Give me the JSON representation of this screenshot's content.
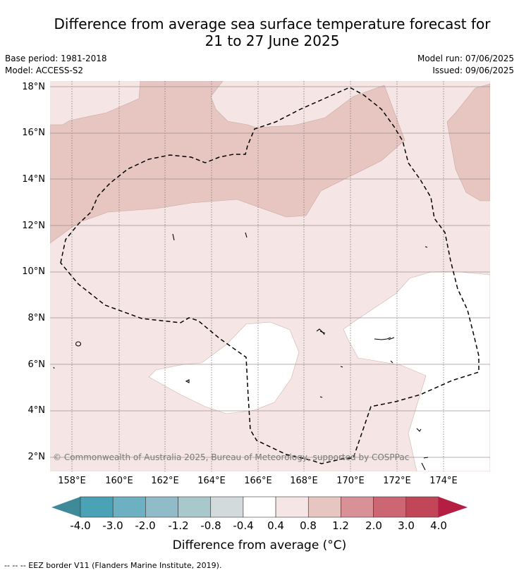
{
  "title_line1": "Difference from average sea surface temperature forecast for",
  "title_line2": "21 to 27 June 2025",
  "base_period": "Base period: 1981-2018",
  "model": "Model: ACCESS-S2",
  "model_run": "Model run: 07/06/2025",
  "issued": "Issued: 09/06/2025",
  "copyright": "© Commonwealth of Australia 2025, Bureau of Meteorology, supported by COSPPac",
  "footnote": "-- -- -- EEZ border V11 (Flanders Marine Institute, 2019).",
  "lat_labels": [
    "18°N",
    "16°N",
    "14°N",
    "12°N",
    "10°N",
    "8°N",
    "6°N",
    "4°N",
    "2°N"
  ],
  "lon_labels": [
    "158°E",
    "160°E",
    "162°E",
    "164°E",
    "166°E",
    "168°E",
    "170°E",
    "172°E",
    "174°E"
  ],
  "colorbar": {
    "title": "Difference from average (°C)",
    "ticks": [
      "-4.0",
      "-3.0",
      "-2.0",
      "-1.2",
      "-0.8",
      "-0.4",
      "0.4",
      "0.8",
      "1.2",
      "2.0",
      "3.0",
      "4.0"
    ],
    "colors": [
      "#3f8a98",
      "#4aa2b6",
      "#6cb0c2",
      "#8fbcc8",
      "#a9c8cc",
      "#d3dadb",
      "#ffffff",
      "#f5e6e5",
      "#e7c6c1",
      "#d99198",
      "#cc6672",
      "#c04658",
      "#b31e42"
    ]
  },
  "map_legend": {
    "background_category": "0.4 to 0.8",
    "patch_category": "0.8 to 1.2",
    "neutral_category": "-0.4 to 0.4"
  }
}
